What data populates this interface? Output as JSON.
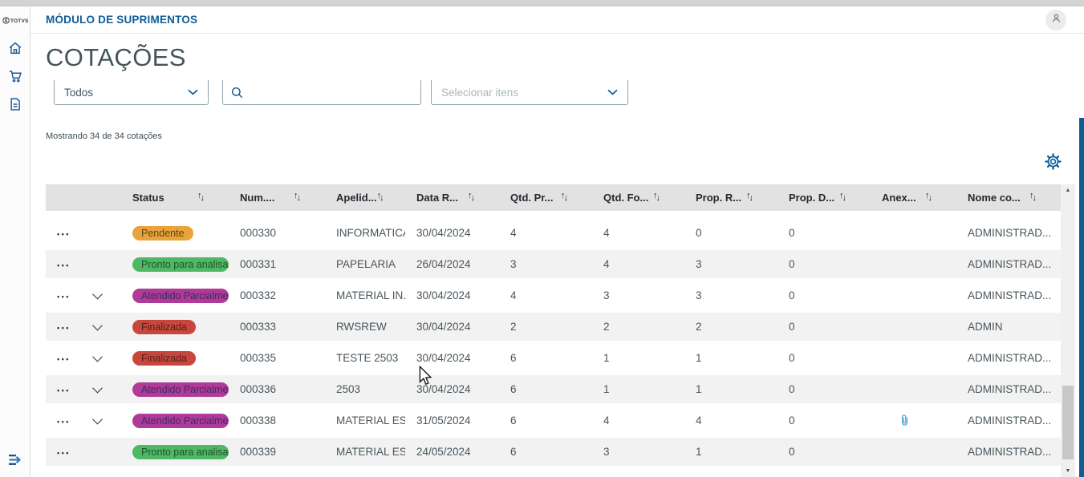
{
  "topbar": {
    "title": "MÓDULO DE SUPRIMENTOS"
  },
  "sidebar": {
    "logo_text": "TOTVS",
    "items": [
      {
        "id": "home",
        "icon": "home-icon"
      },
      {
        "id": "purchases",
        "icon": "cart-icon"
      },
      {
        "id": "documents",
        "icon": "document-icon"
      }
    ]
  },
  "page": {
    "title": "COTAÇÕES",
    "results_summary": "Mostrando 34 de 34 cotações"
  },
  "filters": {
    "type_select": {
      "value": "Todos"
    },
    "search": {
      "value": "",
      "placeholder": ""
    },
    "items_select": {
      "placeholder": "Selecionar itens"
    }
  },
  "colors": {
    "primary": "#0c5c98",
    "badge": {
      "warning": {
        "bg": "#E8A33C",
        "text": "#5C4512"
      },
      "success": {
        "bg": "#4FB863",
        "text": "#20522E"
      },
      "partial": {
        "bg": "#B03A98",
        "text": "#3F2B66"
      },
      "danger": {
        "bg": "#C8473C",
        "text": "#571E19"
      }
    }
  },
  "table": {
    "columns": [
      {
        "id": "actions",
        "label": "",
        "sortable": false
      },
      {
        "id": "expand",
        "label": "",
        "sortable": false
      },
      {
        "id": "status",
        "label": "Status",
        "sortable": true
      },
      {
        "id": "numero",
        "label": "Num....",
        "sortable": true
      },
      {
        "id": "apelido",
        "label": "Apelid...",
        "sortable": true
      },
      {
        "id": "data",
        "label": "Data R...",
        "sortable": true
      },
      {
        "id": "qtd_produtos",
        "label": "Qtd. Pr...",
        "sortable": true
      },
      {
        "id": "qtd_fornecedores",
        "label": "Qtd. Fo...",
        "sortable": true
      },
      {
        "id": "prop_recebidas",
        "label": "Prop. R...",
        "sortable": true
      },
      {
        "id": "prop_digitadas",
        "label": "Prop. D...",
        "sortable": true
      },
      {
        "id": "anexo",
        "label": "Anex...",
        "sortable": true
      },
      {
        "id": "nome",
        "label": "Nome co...",
        "sortable": true
      }
    ],
    "rows": [
      {
        "status": "Pendente",
        "status_type": "warning",
        "expandable": false,
        "numero": "000330",
        "apelido": "INFORMATICA",
        "data": "30/04/2024",
        "qtd_produtos": "4",
        "qtd_fornecedores": "4",
        "prop_recebidas": "0",
        "prop_digitadas": "0",
        "has_attachment": false,
        "nome": "ADMINISTRAD..."
      },
      {
        "status": "Pronto para analisar",
        "status_type": "success",
        "expandable": false,
        "numero": "000331",
        "apelido": "PAPELARIA",
        "data": "26/04/2024",
        "qtd_produtos": "3",
        "qtd_fornecedores": "4",
        "prop_recebidas": "3",
        "prop_digitadas": "0",
        "has_attachment": false,
        "nome": "ADMINISTRAD..."
      },
      {
        "status": "Atendido Parcialmente",
        "status_type": "partial",
        "expandable": true,
        "numero": "000332",
        "apelido": "MATERIAL IN...",
        "data": "30/04/2024",
        "qtd_produtos": "4",
        "qtd_fornecedores": "3",
        "prop_recebidas": "3",
        "prop_digitadas": "0",
        "has_attachment": false,
        "nome": "ADMINISTRAD..."
      },
      {
        "status": "Finalizada",
        "status_type": "danger",
        "expandable": true,
        "numero": "000333",
        "apelido": "RWSREW",
        "data": "30/04/2024",
        "qtd_produtos": "2",
        "qtd_fornecedores": "2",
        "prop_recebidas": "2",
        "prop_digitadas": "0",
        "has_attachment": false,
        "nome": "ADMIN"
      },
      {
        "status": "Finalizada",
        "status_type": "danger",
        "expandable": true,
        "numero": "000335",
        "apelido": "TESTE 2503",
        "data": "30/04/2024",
        "qtd_produtos": "6",
        "qtd_fornecedores": "1",
        "prop_recebidas": "1",
        "prop_digitadas": "0",
        "has_attachment": false,
        "nome": "ADMINISTRAD..."
      },
      {
        "status": "Atendido Parcialmente",
        "status_type": "partial",
        "expandable": true,
        "numero": "000336",
        "apelido": "2503",
        "data": "30/04/2024",
        "qtd_produtos": "6",
        "qtd_fornecedores": "1",
        "prop_recebidas": "1",
        "prop_digitadas": "0",
        "has_attachment": false,
        "nome": "ADMINISTRAD..."
      },
      {
        "status": "Atendido Parcialmente",
        "status_type": "partial",
        "expandable": true,
        "numero": "000338",
        "apelido": "MATERIAL ES...",
        "data": "31/05/2024",
        "qtd_produtos": "6",
        "qtd_fornecedores": "4",
        "prop_recebidas": "4",
        "prop_digitadas": "0",
        "has_attachment": true,
        "nome": "ADMINISTRAD..."
      },
      {
        "status": "Pronto para analisar",
        "status_type": "success",
        "expandable": false,
        "numero": "000339",
        "apelido": "MATERIAL ES...",
        "data": "24/05/2024",
        "qtd_produtos": "6",
        "qtd_fornecedores": "3",
        "prop_recebidas": "1",
        "prop_digitadas": "0",
        "has_attachment": false,
        "nome": "ADMINISTRAD..."
      }
    ]
  }
}
